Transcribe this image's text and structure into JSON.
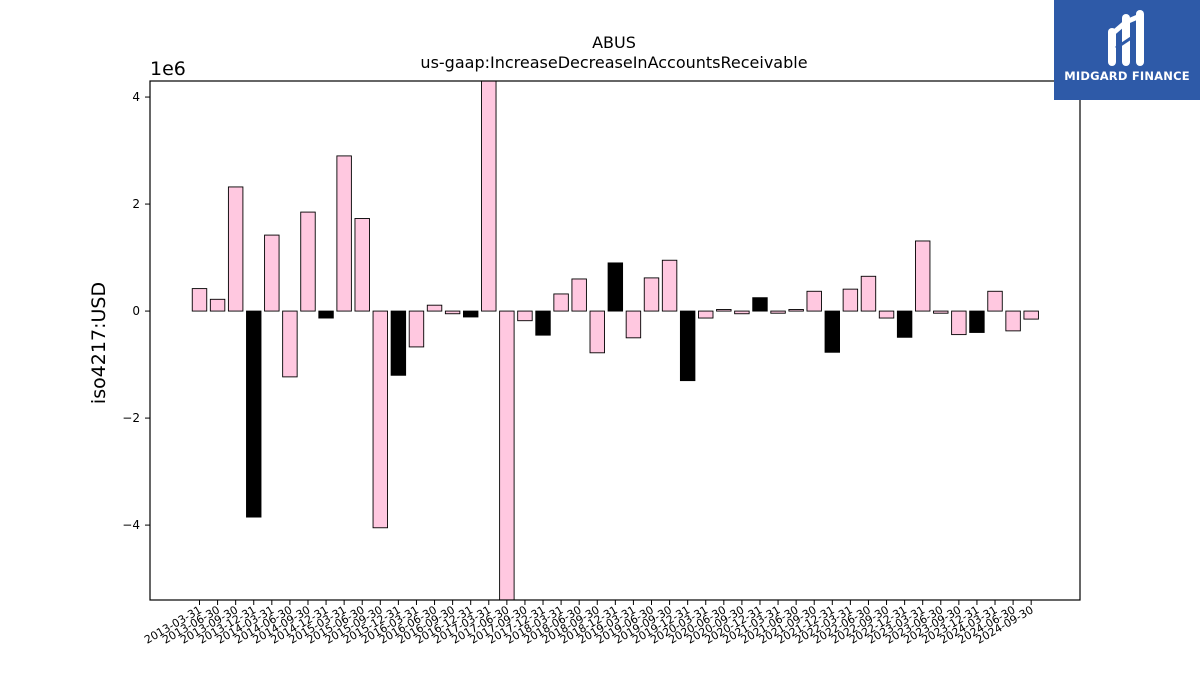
{
  "chart_data": {
    "type": "bar",
    "title": "ABUS",
    "subtitle": "us-gaap:IncreaseDecreaseInAccountsReceivable",
    "ylabel": "iso4217:USD",
    "xlabel": "",
    "offset_label": "1e6",
    "ylim": [
      -5400000,
      4300000
    ],
    "yticks": [
      -4000000,
      -2000000,
      0,
      2000000,
      4000000
    ],
    "ytick_labels": [
      "−4",
      "−2",
      "0",
      "2",
      "4"
    ],
    "grid": false,
    "colors": {
      "positive_default": "#ffc8e0",
      "highlight": "#000000",
      "edge": "#000000"
    },
    "categories": [
      "2013-03-31",
      "2013-06-30",
      "2013-09-30",
      "2013-12-31",
      "2014-03-31",
      "2014-06-30",
      "2014-09-30",
      "2014-12-31",
      "2015-03-31",
      "2015-06-30",
      "2015-09-30",
      "2015-12-31",
      "2016-03-31",
      "2016-06-30",
      "2016-09-30",
      "2016-12-31",
      "2017-03-31",
      "2017-06-30",
      "2017-09-30",
      "2017-12-31",
      "2018-03-31",
      "2018-06-30",
      "2018-09-30",
      "2018-12-31",
      "2019-03-31",
      "2019-06-30",
      "2019-09-30",
      "2019-12-31",
      "2020-03-31",
      "2020-06-30",
      "2020-09-30",
      "2020-12-31",
      "2021-03-31",
      "2021-06-30",
      "2021-09-30",
      "2021-12-31",
      "2022-03-31",
      "2022-06-30",
      "2022-09-30",
      "2022-12-31",
      "2023-03-31",
      "2023-06-30",
      "2023-09-30",
      "2023-12-31",
      "2024-03-31",
      "2024-06-30",
      "2024-09-30"
    ],
    "values": [
      420000,
      220000,
      2320000,
      -3850000,
      1420000,
      -1230000,
      1850000,
      -130000,
      2900000,
      1730000,
      -4050000,
      -1200000,
      -670000,
      110000,
      -50000,
      -110000,
      4300000,
      -5400000,
      -180000,
      -450000,
      320000,
      600000,
      -780000,
      900000,
      -500000,
      620000,
      950000,
      -1300000,
      -130000,
      30000,
      -50000,
      250000,
      -40000,
      30000,
      370000,
      -770000,
      410000,
      650000,
      -130000,
      -490000,
      1310000,
      -40000,
      -440000,
      -400000,
      370000,
      -370000,
      -150000
    ],
    "highlight": [
      false,
      false,
      false,
      true,
      false,
      false,
      false,
      true,
      false,
      false,
      false,
      true,
      false,
      false,
      false,
      true,
      false,
      false,
      false,
      true,
      false,
      false,
      false,
      true,
      false,
      false,
      false,
      true,
      false,
      false,
      false,
      true,
      false,
      false,
      false,
      true,
      false,
      false,
      false,
      true,
      false,
      false,
      false,
      true,
      false,
      false,
      false
    ]
  },
  "branding": {
    "logo_text": "MIDGARD FINANCE",
    "logo_icon": "midgard-m-logo-icon"
  }
}
